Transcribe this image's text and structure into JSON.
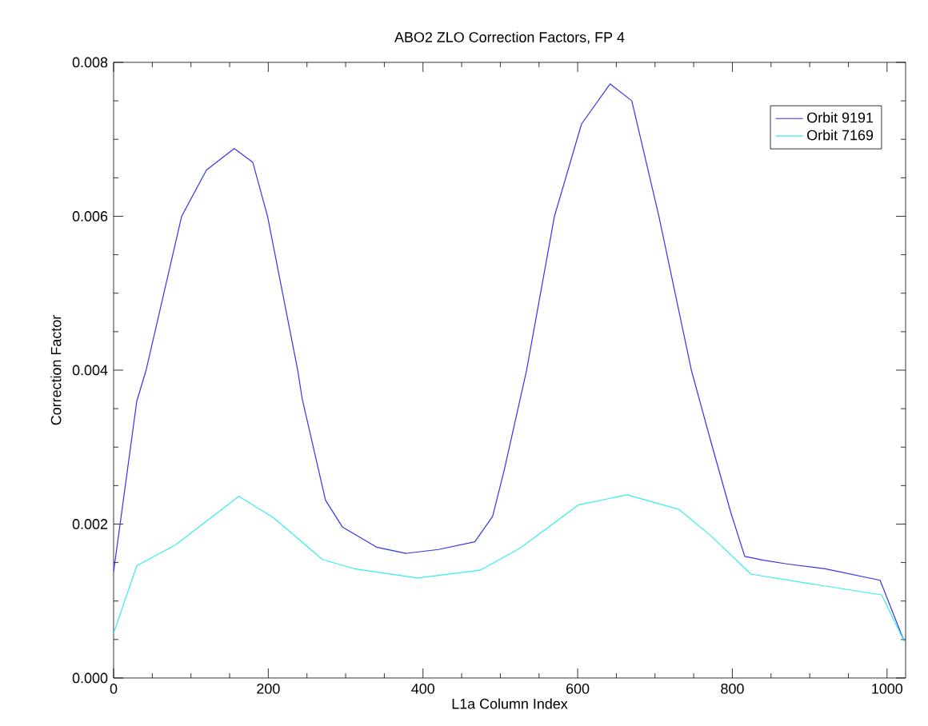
{
  "chart_data": {
    "type": "line",
    "title": "ABO2 ZLO Correction Factors, FP 4",
    "xlabel": "L1a Column Index",
    "ylabel": "Correction Factor",
    "xlim": [
      0,
      1024
    ],
    "ylim": [
      0,
      0.008
    ],
    "xticks": [
      0,
      200,
      400,
      600,
      800,
      1000
    ],
    "yticks": [
      {
        "value": 0,
        "label": "0.000"
      },
      {
        "value": 0.002,
        "label": "0.002"
      },
      {
        "value": 0.004,
        "label": "0.004"
      },
      {
        "value": 0.006,
        "label": "0.006"
      },
      {
        "value": 0.008,
        "label": "0.008"
      }
    ],
    "grid": false,
    "legend": "top right",
    "marker": "none",
    "line_style": "solid",
    "series": [
      {
        "name": "Orbit 9191",
        "color": "#3333ee",
        "x": [
          0,
          30,
          42,
          88,
          120,
          156,
          180,
          199,
          238,
          244,
          274,
          296,
          340,
          378,
          420,
          467,
          490,
          505,
          534,
          570,
          605,
          642,
          670,
          705,
          747,
          772,
          798,
          816,
          840,
          872,
          920,
          991,
          1022
        ],
        "values": [
          0.00138,
          0.0036,
          0.004,
          0.006,
          0.0066,
          0.00688,
          0.0067,
          0.006,
          0.004,
          0.00362,
          0.00231,
          0.00196,
          0.0017,
          0.00162,
          0.00167,
          0.00177,
          0.0021,
          0.0027,
          0.004,
          0.006,
          0.0072,
          0.00772,
          0.0075,
          0.006,
          0.004,
          0.00308,
          0.00215,
          0.00158,
          0.00153,
          0.00148,
          0.00142,
          0.00127,
          0.00048
        ]
      },
      {
        "name": "Orbit 7169",
        "color": "#33eeee",
        "x": [
          0,
          30,
          80,
          162,
          207,
          270,
          311,
          393,
          474,
          526,
          601,
          664,
          731,
          772,
          824,
          898,
          993,
          1022
        ],
        "values": [
          0.00058,
          0.00146,
          0.00173,
          0.00236,
          0.00208,
          0.00154,
          0.00142,
          0.0013,
          0.0014,
          0.00169,
          0.00225,
          0.00238,
          0.00219,
          0.00185,
          0.00135,
          0.00123,
          0.00108,
          0.00048
        ]
      }
    ]
  }
}
